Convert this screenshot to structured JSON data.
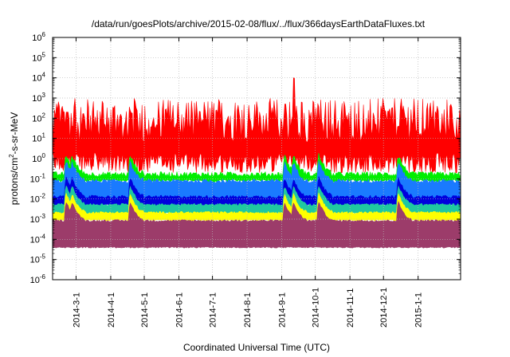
{
  "chart_data": {
    "type": "area",
    "title": "/data/run/goesPlots/archive/2015-02-08/flux/../flux/366daysEarthDataFluxes.txt",
    "xlabel": "Coordinated Universal Time (UTC)",
    "ylabel": "protons/cm2-s-sr-MeV",
    "ylabel_main": "protons/cm",
    "ylabel_sup": "2",
    "ylabel_rest": "-s-sr-MeV",
    "yscale": "log",
    "ylim": [
      1e-06,
      1000000.0
    ],
    "xlim": [
      "2014-02-08",
      "2015-02-08"
    ],
    "grid": true,
    "y_ticks": [
      {
        "value": 1e-06,
        "base": "10",
        "exp": "-6"
      },
      {
        "value": 1e-05,
        "base": "10",
        "exp": "-5"
      },
      {
        "value": 0.0001,
        "base": "10",
        "exp": "-4"
      },
      {
        "value": 0.001,
        "base": "10",
        "exp": "-3"
      },
      {
        "value": 0.01,
        "base": "10",
        "exp": "-2"
      },
      {
        "value": 0.1,
        "base": "10",
        "exp": "-1"
      },
      {
        "value": 1,
        "base": "10",
        "exp": "0"
      },
      {
        "value": 10,
        "base": "10",
        "exp": "1"
      },
      {
        "value": 100,
        "base": "10",
        "exp": "2"
      },
      {
        "value": 1000,
        "base": "10",
        "exp": "3"
      },
      {
        "value": 10000,
        "base": "10",
        "exp": "4"
      },
      {
        "value": 100000,
        "base": "10",
        "exp": "5"
      },
      {
        "value": 1000000,
        "base": "10",
        "exp": "6"
      }
    ],
    "x_ticks": [
      {
        "date": "2014-03-01",
        "label": "2014-3-1"
      },
      {
        "date": "2014-04-01",
        "label": "2014-4-1"
      },
      {
        "date": "2014-05-01",
        "label": "2014-5-1"
      },
      {
        "date": "2014-06-01",
        "label": "2014-6-1"
      },
      {
        "date": "2014-07-01",
        "label": "2014-7-1"
      },
      {
        "date": "2014-08-01",
        "label": "2014-8-1"
      },
      {
        "date": "2014-09-01",
        "label": "2014-9-1"
      },
      {
        "date": "2014-10-01",
        "label": "2014-10-1"
      },
      {
        "date": "2014-11-01",
        "label": "2014-11-1"
      },
      {
        "date": "2014-12-01",
        "label": "2014-12-1"
      },
      {
        "date": "2015-01-01",
        "label": "2015-1-1"
      }
    ],
    "series": [
      {
        "color": "#ff0000",
        "typical_low": 0.5,
        "typical_high": 100,
        "noise": 1.2
      },
      {
        "color": "#00ee00",
        "typical_low": 0.08,
        "typical_high": 0.15,
        "noise": 0.25
      },
      {
        "color": "#1a7aff",
        "typical_low": 0.01,
        "typical_high": 0.07,
        "noise": 0.2
      },
      {
        "color": "#0000dd",
        "typical_low": 0.005,
        "typical_high": 0.012,
        "noise": 0.15
      },
      {
        "color": "#1fc8a0",
        "typical_low": 0.002,
        "typical_high": 0.005,
        "noise": 0.12
      },
      {
        "color": "#ffff00",
        "typical_low": 0.0009,
        "typical_high": 0.002,
        "noise": 0.12
      },
      {
        "color": "#9c3c6a",
        "typical_low": 4e-05,
        "typical_high": 0.0008,
        "noise": 0.1
      }
    ],
    "events": [
      {
        "date": "2014-02-20",
        "peak": 200
      },
      {
        "date": "2014-02-25",
        "peak": 40
      },
      {
        "date": "2014-04-18",
        "peak": 50
      },
      {
        "date": "2014-09-03",
        "peak": 500
      },
      {
        "date": "2014-09-11",
        "peak": 10000
      },
      {
        "date": "2014-10-04",
        "peak": 30
      },
      {
        "date": "2014-12-14",
        "peak": 40
      }
    ]
  }
}
